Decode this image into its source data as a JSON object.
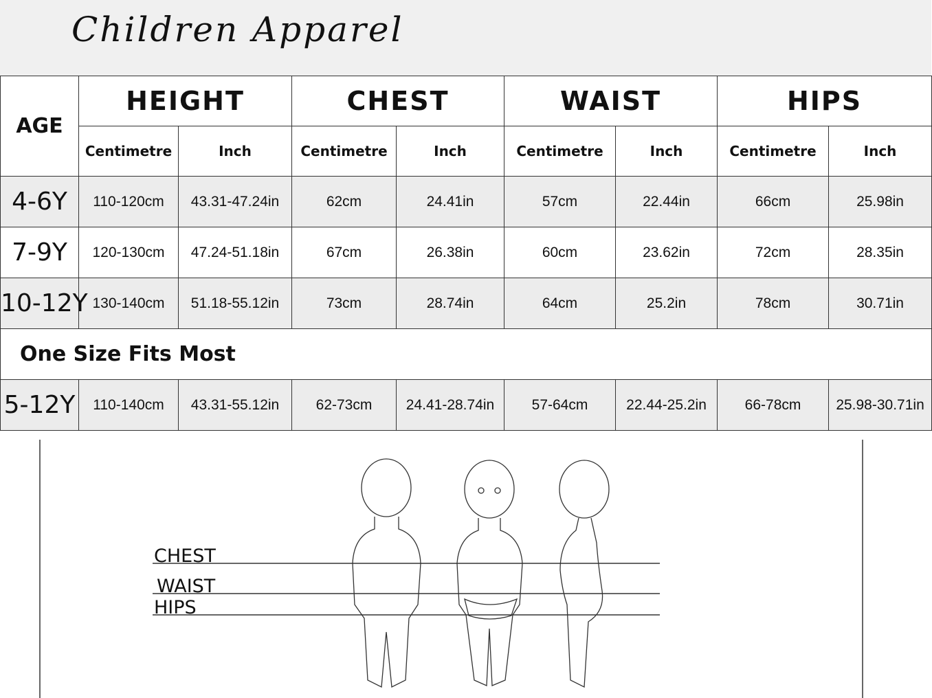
{
  "title": "Children Apparel",
  "table": {
    "age_header": "AGE",
    "groups": [
      "HEIGHT",
      "CHEST",
      "WAIST",
      "HIPS"
    ],
    "sub_headers": [
      "Centimetre",
      "Inch",
      "Centimetre",
      "Inch",
      "Centimetre",
      "Inch",
      "Centimetre",
      "Inch"
    ],
    "rows": [
      {
        "age": "4-6Y",
        "cells": [
          "110-120cm",
          "43.31-47.24in",
          "62cm",
          "24.41in",
          "57cm",
          "22.44in",
          "66cm",
          "25.98in"
        ]
      },
      {
        "age": "7-9Y",
        "cells": [
          "120-130cm",
          "47.24-51.18in",
          "67cm",
          "26.38in",
          "60cm",
          "23.62in",
          "72cm",
          "28.35in"
        ]
      },
      {
        "age": "10-12Y",
        "cells": [
          "130-140cm",
          "51.18-55.12in",
          "73cm",
          "28.74in",
          "64cm",
          "25.2in",
          "78cm",
          "30.71in"
        ]
      }
    ],
    "one_size_label": "One Size Fits Most",
    "one_size_row": {
      "age": "5-12Y",
      "cells": [
        "110-140cm",
        "43.31-55.12in",
        "62-73cm",
        "24.41-28.74in",
        "57-64cm",
        "22.44-25.2in",
        "66-78cm",
        "25.98-30.71in"
      ]
    }
  },
  "diagram": {
    "labels": [
      "CHEST",
      "WAIST",
      "HIPS"
    ]
  }
}
